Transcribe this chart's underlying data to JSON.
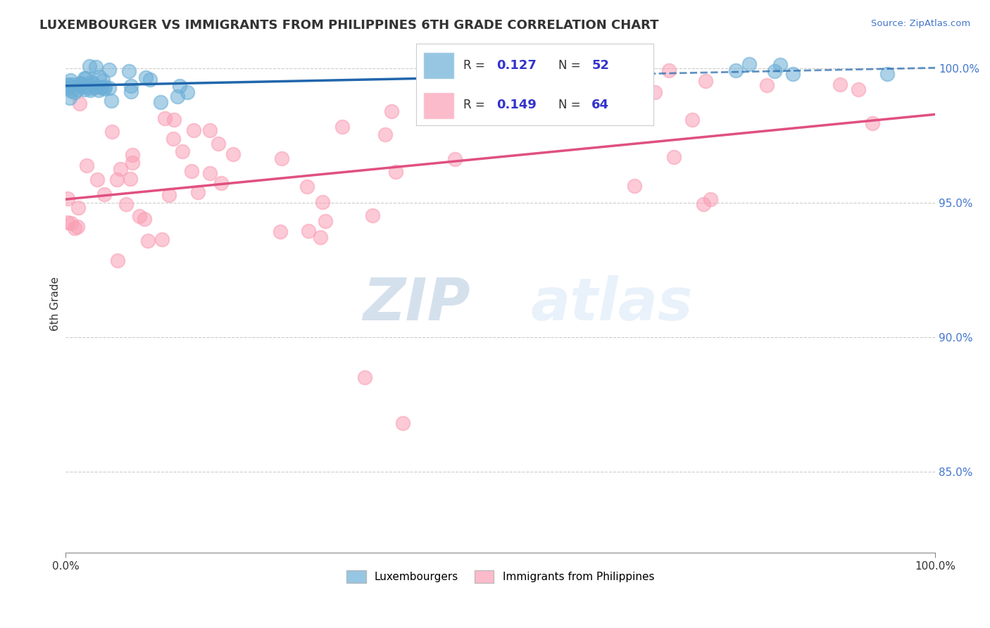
{
  "title": "LUXEMBOURGER VS IMMIGRANTS FROM PHILIPPINES 6TH GRADE CORRELATION CHART",
  "source": "Source: ZipAtlas.com",
  "ylabel": "6th Grade",
  "blue_R": 0.127,
  "blue_N": 52,
  "pink_R": 0.149,
  "pink_N": 64,
  "blue_label": "Luxembourgers",
  "pink_label": "Immigrants from Philippines",
  "xlim": [
    0.0,
    1.0
  ],
  "ylim": [
    0.82,
    1.005
  ],
  "blue_color": "#6baed6",
  "pink_color": "#fa9fb5",
  "blue_line_color": "#2166ac",
  "pink_line_color": "#e05080",
  "grid_color": "#cccccc",
  "bg_color": "#ffffff",
  "title_color": "#333333",
  "stat_color": "#3333cc",
  "watermark_zip": "ZIP",
  "watermark_atlas": "atlas"
}
